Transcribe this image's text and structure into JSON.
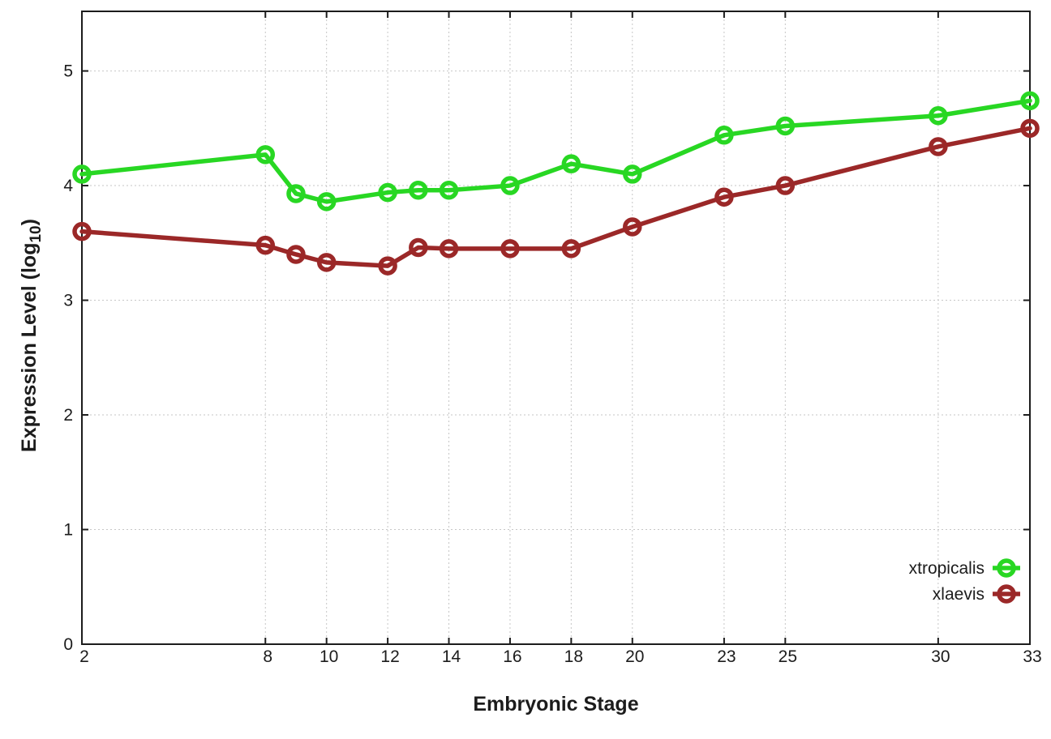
{
  "chart_data": {
    "type": "line",
    "title": "",
    "xlabel": "Embryonic Stage",
    "ylabel": "Expression Level (log10)",
    "ylabel_parts": {
      "main": "Expression Level (log",
      "sub": "10",
      "end": ")"
    },
    "xlim": [
      2,
      33
    ],
    "ylim": [
      0,
      5.52
    ],
    "x_ticks": [
      2,
      8,
      10,
      12,
      14,
      16,
      18,
      20,
      23,
      25,
      30,
      33
    ],
    "y_ticks": [
      0,
      1,
      2,
      3,
      4,
      5
    ],
    "grid": true,
    "legend_position": "inside-right-lower",
    "x": [
      2,
      8,
      9,
      10,
      12,
      13,
      14,
      16,
      18,
      20,
      23,
      25,
      30,
      33
    ],
    "series": [
      {
        "name": "xtropicalis",
        "color": "#28d723",
        "values": [
          4.1,
          4.27,
          3.93,
          3.86,
          3.94,
          3.96,
          3.96,
          4.0,
          4.19,
          4.1,
          4.44,
          4.52,
          4.61,
          4.74
        ]
      },
      {
        "name": "xlaevis",
        "color": "#9b2828",
        "values": [
          3.6,
          3.48,
          3.4,
          3.33,
          3.3,
          3.46,
          3.45,
          3.45,
          3.45,
          3.64,
          3.9,
          4.0,
          4.34,
          4.5
        ]
      }
    ]
  },
  "colors": {
    "background": "#ffffff",
    "grid": "#c6c6c6",
    "border": "#1c1c1c",
    "tick": "#1c1c1c",
    "text": "#1c1c1c"
  }
}
